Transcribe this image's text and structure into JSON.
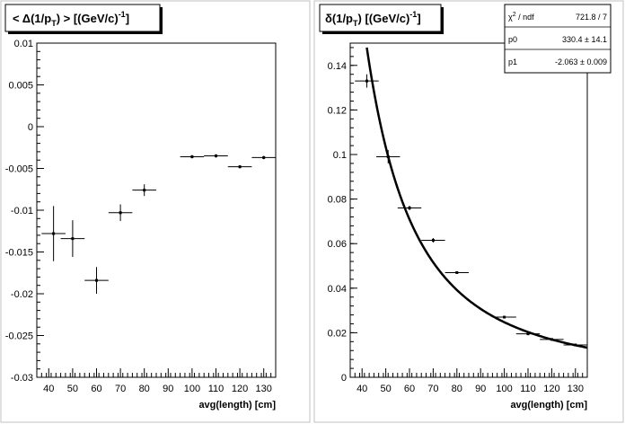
{
  "chart_data": [
    {
      "type": "scatter",
      "title": "< Δ(1/p_T) >  [(GeV/c)^-1]",
      "title_parts": {
        "open": "< Δ(1/p",
        "sub": "T",
        "mid": ") >  [(GeV/c)",
        "sup": "-1",
        "close": "]"
      },
      "xlabel": "avg(length) [cm]",
      "ylabel": "",
      "xlim": [
        35,
        135
      ],
      "ylim": [
        -0.03,
        0.01
      ],
      "grid": false,
      "x_ticks": [
        "40",
        "50",
        "60",
        "70",
        "80",
        "90",
        "100",
        "110",
        "120",
        "130"
      ],
      "y_ticks": [
        "0.01",
        "0.005",
        "0",
        "-0.005",
        "-0.01",
        "-0.015",
        "-0.02",
        "-0.025",
        "-0.03"
      ],
      "x_tick_values": [
        40,
        50,
        60,
        70,
        80,
        90,
        100,
        110,
        120,
        130
      ],
      "y_tick_values": [
        0.01,
        0.005,
        0,
        -0.005,
        -0.01,
        -0.015,
        -0.02,
        -0.025,
        -0.03
      ],
      "points": [
        {
          "x": 42,
          "y": -0.0128,
          "xerr": 5,
          "yerr": 0.0033
        },
        {
          "x": 50,
          "y": -0.0134,
          "xerr": 5,
          "yerr": 0.0022
        },
        {
          "x": 60,
          "y": -0.0184,
          "xerr": 5,
          "yerr": 0.0016
        },
        {
          "x": 70,
          "y": -0.0103,
          "xerr": 5,
          "yerr": 0.001
        },
        {
          "x": 80,
          "y": -0.0076,
          "xerr": 5,
          "yerr": 0.0007
        },
        {
          "x": 100,
          "y": -0.0036,
          "xerr": 5,
          "yerr": 0.0002
        },
        {
          "x": 110,
          "y": -0.0035,
          "xerr": 5,
          "yerr": 0.0002
        },
        {
          "x": 120,
          "y": -0.0048,
          "xerr": 5,
          "yerr": 0.0002
        },
        {
          "x": 130,
          "y": -0.0037,
          "xerr": 5,
          "yerr": 0.0002
        }
      ]
    },
    {
      "type": "scatter",
      "title": "δ(1/p_T)  [(GeV/c)^-1]",
      "title_parts": {
        "open": "δ(1/p",
        "sub": "T",
        "mid": ")  [(GeV/c)",
        "sup": "-1",
        "close": "]"
      },
      "xlabel": "avg(length) [cm]",
      "ylabel": "",
      "xlim": [
        35,
        135
      ],
      "ylim": [
        0,
        0.15
      ],
      "grid": false,
      "x_ticks": [
        "40",
        "50",
        "60",
        "70",
        "80",
        "90",
        "100",
        "110",
        "120",
        "130"
      ],
      "y_ticks": [
        "0.14",
        "0.12",
        "0.1",
        "0.08",
        "0.06",
        "0.04",
        "0.02",
        "0"
      ],
      "x_tick_values": [
        40,
        50,
        60,
        70,
        80,
        90,
        100,
        110,
        120,
        130
      ],
      "y_tick_values": [
        0.14,
        0.12,
        0.1,
        0.08,
        0.06,
        0.04,
        0.02,
        0
      ],
      "points": [
        {
          "x": 42,
          "y": 0.133,
          "xerr": 5,
          "yerr": 0.003
        },
        {
          "x": 51,
          "y": 0.099,
          "xerr": 5,
          "yerr": 0.003
        },
        {
          "x": 60,
          "y": 0.076,
          "xerr": 5,
          "yerr": 0.001
        },
        {
          "x": 70,
          "y": 0.0615,
          "xerr": 5,
          "yerr": 0.001
        },
        {
          "x": 80,
          "y": 0.047,
          "xerr": 5,
          "yerr": 0.0005
        },
        {
          "x": 100,
          "y": 0.027,
          "xerr": 5,
          "yerr": 0.0005
        },
        {
          "x": 110,
          "y": 0.0195,
          "xerr": 5,
          "yerr": 0.0005
        },
        {
          "x": 120,
          "y": 0.017,
          "xerr": 5,
          "yerr": 0.0005
        },
        {
          "x": 130,
          "y": 0.0145,
          "xerr": 5,
          "yerr": 0.0005
        }
      ],
      "fit": {
        "function": "p0 * x^p1",
        "p0": 330.4,
        "p1": -2.063
      },
      "stats": {
        "chi2_ndf_label": "χ² / ndf",
        "chi2_ndf_label_base": "χ",
        "chi2_ndf_label_sup": "2",
        "chi2_ndf_label_tail": " / ndf",
        "chi2_ndf_value": "721.8 / 7",
        "p0_label": "p0",
        "p0_value": "330.4 ± 14.1",
        "p1_label": "p1",
        "p1_value": "-2.063 ± 0.009"
      }
    }
  ]
}
